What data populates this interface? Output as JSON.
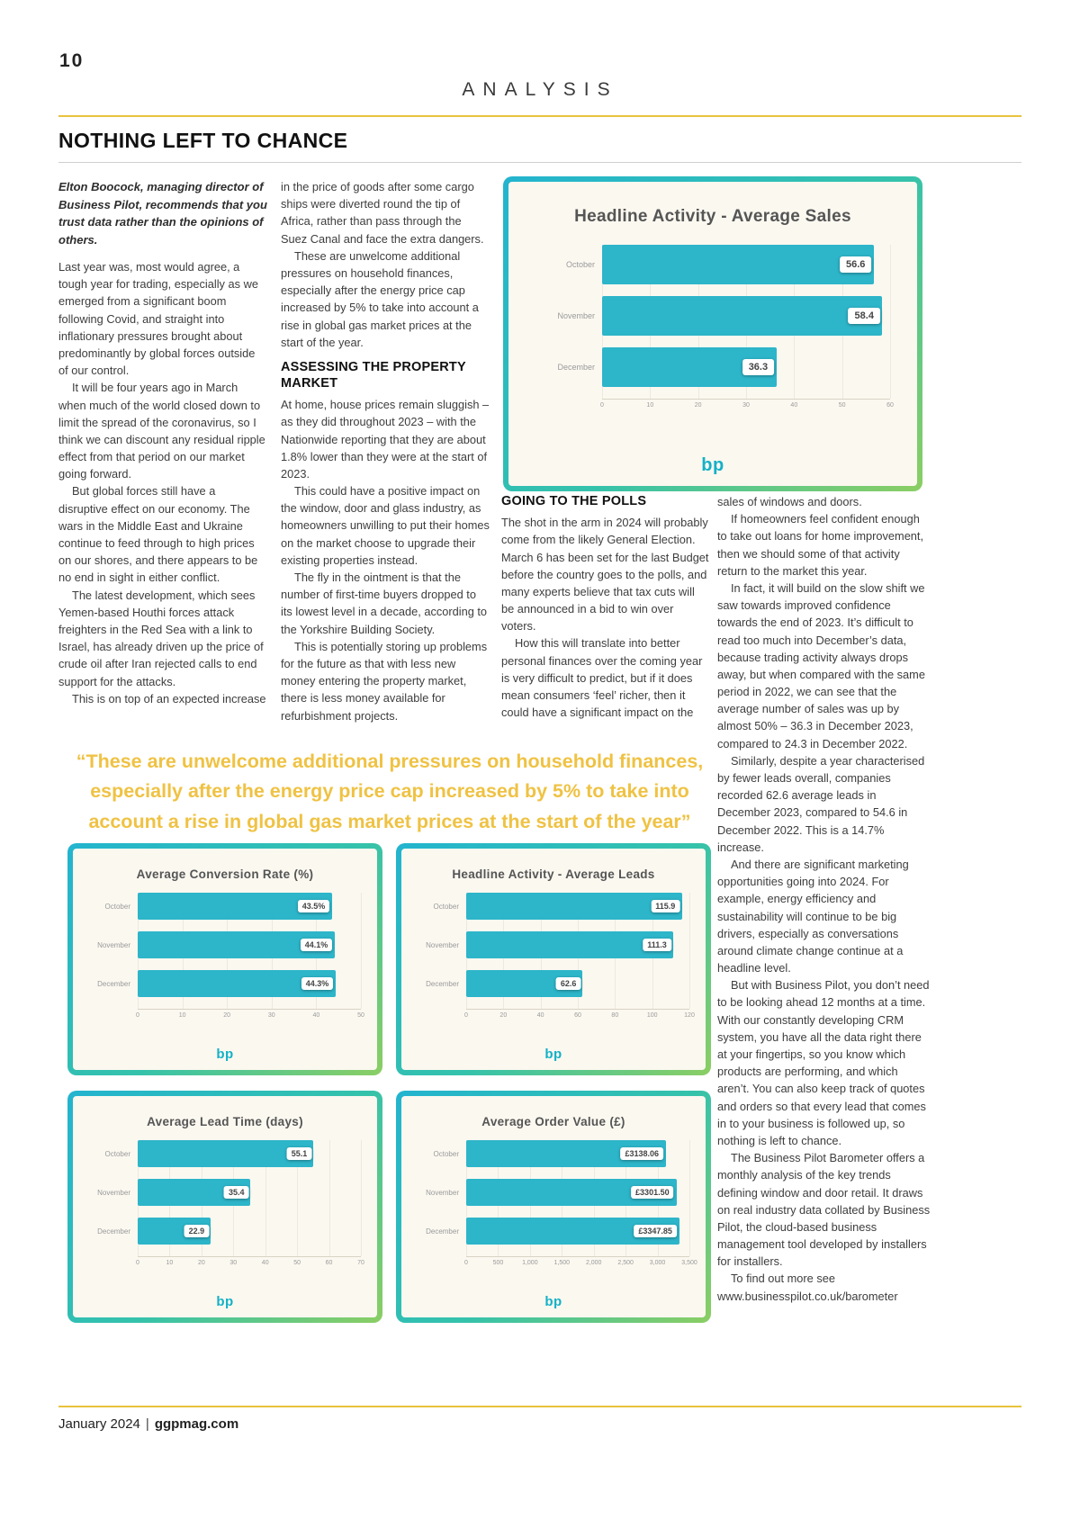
{
  "page": {
    "number": "10",
    "section": "ANALYSIS",
    "title": "NOTHING LEFT TO CHANCE",
    "footer": {
      "date": "January 2024",
      "separator": "|",
      "site": "ggpmag.com"
    }
  },
  "article": {
    "standfirst": "Elton Boocock, managing director of Business Pilot, recommends that you trust data rather than the opinions of others.",
    "col1_paragraphs": [
      "Last year was, most would agree, a tough year for trading, especially as we emerged from a significant boom following Covid, and straight into inflationary pressures brought about predominantly by global forces outside of our control.",
      "It will be four years ago in March when much of the world closed down to limit the spread of the coronavirus, so I think we can discount any residual ripple effect from that period on our market going forward.",
      "But global forces still have a disruptive effect on our economy. The wars in the Middle East and Ukraine continue to feed through to high prices on our shores, and there appears to be no end in sight in either conflict.",
      "The latest development, which sees Yemen-based Houthi forces attack freighters in the Red Sea with a link to Israel, has already driven up the price of crude oil after Iran rejected calls to end support for the attacks.",
      "This is on top of an expected increase"
    ],
    "col2_paragraphs": [
      "in the price of goods after some cargo ships were diverted round the tip of Africa, rather than pass through the Suez Canal and face the extra dangers.",
      "These are unwelcome additional pressures on household finances, especially after the energy price cap increased by 5% to take into account a rise in global gas market prices at the start of the year."
    ],
    "property_heading": "ASSESSING THE PROPERTY MARKET",
    "col2_paragraphs_after": [
      "At home, house prices remain sluggish – as they did throughout 2023 – with the Nationwide reporting that they are about 1.8% lower than they were at the start of 2023.",
      "This could have a positive impact on the window, door and glass industry, as homeowners unwilling to put their homes on the market choose to upgrade their existing properties instead.",
      "The fly in the ointment is that the number of first-time buyers dropped to its lowest level in a decade, according to the Yorkshire Building Society.",
      "This is potentially storing up problems for the future as that with less new money entering the property market, there is less money available for refurbishment projects."
    ],
    "polls_heading": "GOING TO THE POLLS",
    "col3_paragraphs": [
      "The shot in the arm in 2024 will probably come from the likely General Election. March 6 has been set for the last Budget before the country goes to the polls, and many experts believe that tax cuts will be announced in a bid to win over voters.",
      "How this will translate into better personal finances over the coming year is very difficult to predict, but if it does mean consumers ‘feel’ richer, then it could have a significant impact on the"
    ],
    "col4_paragraphs": [
      "sales of windows and doors.",
      "If homeowners feel confident enough to take out loans for home improvement, then we should some of that activity return to the market this year.",
      "In fact, it will build on the slow shift we saw towards improved confidence towards the end of 2023. It’s difficult to read too much into December’s data, because trading activity always drops away, but when compared with the same period in 2022, we can see that the average number of sales was up by almost 50% – 36.3 in December 2023, compared to 24.3 in December 2022.",
      "Similarly, despite a year characterised by fewer leads overall, companies recorded 62.6 average leads in December 2023, compared to 54.6 in December 2022. This is a 14.7% increase.",
      "And there are significant marketing opportunities going into 2024. For example, energy efficiency and sustainability will continue to be big drivers, especially as conversations around climate change continue at a headline level.",
      "But with Business Pilot, you don’t need to be looking ahead 12 months at a time. With our constantly developing CRM system, you have all the data right there at your fingertips, so you know which products are performing, and which aren’t. You can also keep track of quotes and orders so that every lead that comes in to your business is followed up, so nothing is left to chance.",
      "The Business Pilot Barometer offers a monthly analysis of the key trends defining window and door retail. It draws on real industry data collated by Business Pilot, the cloud-based business management tool developed by installers for installers.",
      "To find out more see www.businesspilot.co.uk/barometer"
    ],
    "pull_quote": "“These are unwelcome additional pressures on household finances, especially after the energy price cap increased by 5% to take into account a rise in global gas market prices at the start of the year”"
  },
  "chart_data": [
    {
      "type": "bar",
      "orientation": "horizontal",
      "title": "Headline Activity - Average Sales",
      "categories": [
        "October",
        "November",
        "December"
      ],
      "values": [
        56.6,
        58.4,
        36.3
      ],
      "value_labels": [
        "56.6",
        "58.4",
        "36.3"
      ],
      "xlim": [
        0,
        60
      ],
      "ticks": [
        0,
        10,
        20,
        30,
        40,
        50,
        60
      ],
      "grid": true,
      "logo": "bp"
    },
    {
      "type": "bar",
      "orientation": "horizontal",
      "title": "Average Conversion Rate (%)",
      "categories": [
        "October",
        "November",
        "December"
      ],
      "values": [
        43.5,
        44.1,
        44.3
      ],
      "value_labels": [
        "43.5%",
        "44.1%",
        "44.3%"
      ],
      "xlim": [
        0,
        50
      ],
      "ticks": [
        0,
        10,
        20,
        30,
        40,
        50
      ],
      "grid": true,
      "logo": "bp"
    },
    {
      "type": "bar",
      "orientation": "horizontal",
      "title": "Headline Activity - Average Leads",
      "categories": [
        "October",
        "November",
        "December"
      ],
      "values": [
        115.9,
        111.3,
        62.6
      ],
      "value_labels": [
        "115.9",
        "111.3",
        "62.6"
      ],
      "xlim": [
        0,
        120
      ],
      "ticks": [
        0,
        20,
        40,
        60,
        80,
        100,
        120
      ],
      "grid": true,
      "logo": "bp"
    },
    {
      "type": "bar",
      "orientation": "horizontal",
      "title": "Average Lead Time (days)",
      "categories": [
        "October",
        "November",
        "December"
      ],
      "values": [
        55.1,
        35.4,
        22.9
      ],
      "value_labels": [
        "55.1",
        "35.4",
        "22.9"
      ],
      "xlim": [
        0,
        70
      ],
      "ticks": [
        0,
        10,
        20,
        30,
        40,
        50,
        60,
        70
      ],
      "grid": true,
      "logo": "bp"
    },
    {
      "type": "bar",
      "orientation": "horizontal",
      "title": "Average Order Value (£)",
      "categories": [
        "October",
        "November",
        "December"
      ],
      "values": [
        3138.06,
        3301.5,
        3347.85
      ],
      "value_labels": [
        "£3138.06",
        "£3301.50",
        "£3347.85"
      ],
      "xlim": [
        0,
        3500
      ],
      "ticks": [
        0,
        500,
        1000,
        1500,
        2000,
        2500,
        3000,
        3500
      ],
      "tick_labels": [
        "0",
        "500",
        "1,000",
        "1,500",
        "2,000",
        "2,500",
        "3,000",
        "3,500"
      ],
      "grid": true,
      "logo": "bp"
    }
  ],
  "colors": {
    "accent_yellow": "#e8c33d",
    "pull_quote_yellow": "#efc243",
    "bar": "#2db5c9",
    "chart_frame_gradient": [
      "#23b4cf",
      "#35c2ab",
      "#8bce63"
    ],
    "chart_background": "#fbf8f0",
    "logo_teal": "#14b1c6",
    "body_text": "#3d3d3d"
  }
}
